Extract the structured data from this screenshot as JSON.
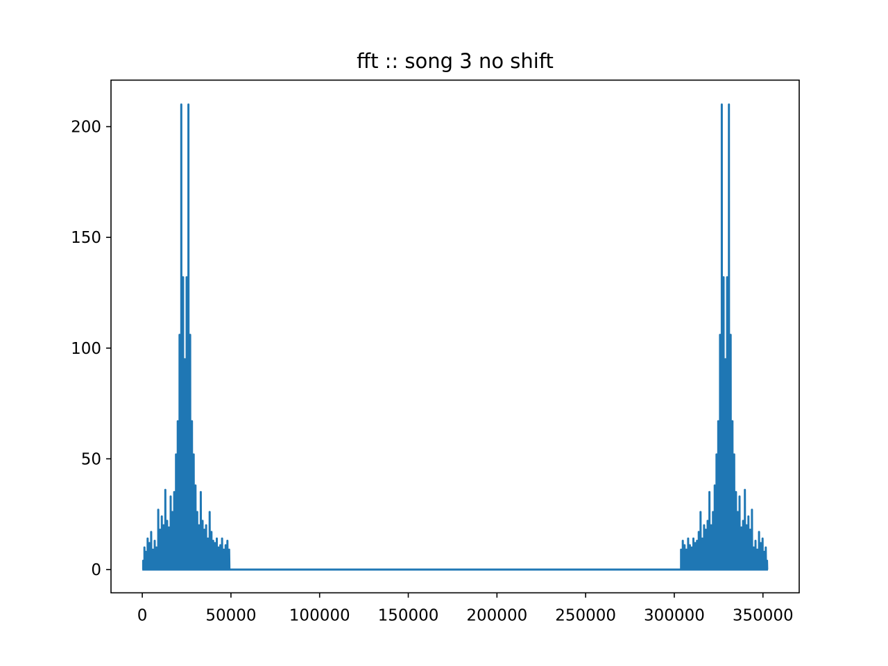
{
  "chart_data": {
    "type": "line",
    "title": "fft :: song 3 no shift",
    "xlabel": "",
    "ylabel": "",
    "xlim": [
      -17640,
      370440
    ],
    "ylim": [
      -10.5,
      221
    ],
    "grid": false,
    "x_ticks": [
      0,
      50000,
      100000,
      150000,
      200000,
      250000,
      300000,
      350000
    ],
    "x_tick_labels": [
      "0",
      "50000",
      "100000",
      "150000",
      "200000",
      "250000",
      "300000",
      "350000"
    ],
    "y_ticks": [
      0,
      50,
      100,
      150,
      200
    ],
    "y_tick_labels": [
      "0",
      "50",
      "100",
      "150",
      "200"
    ],
    "series": [
      {
        "color": "#1f77b4",
        "x_range": [
          0,
          352800
        ],
        "peaks": [
          [
            500,
            4
          ],
          [
            1200,
            10
          ],
          [
            2000,
            8
          ],
          [
            3000,
            14
          ],
          [
            4000,
            12
          ],
          [
            5000,
            17
          ],
          [
            6000,
            9
          ],
          [
            7000,
            13
          ],
          [
            8000,
            10
          ],
          [
            9000,
            27
          ],
          [
            10000,
            18
          ],
          [
            11000,
            24
          ],
          [
            12000,
            20
          ],
          [
            13000,
            36
          ],
          [
            14000,
            22
          ],
          [
            15000,
            19
          ],
          [
            16000,
            33
          ],
          [
            17000,
            26
          ],
          [
            18000,
            35
          ],
          [
            19000,
            52
          ],
          [
            20000,
            67
          ],
          [
            21000,
            106
          ],
          [
            22000,
            210
          ],
          [
            23000,
            132
          ],
          [
            24000,
            95
          ],
          [
            25000,
            132
          ],
          [
            26000,
            210
          ],
          [
            27000,
            106
          ],
          [
            28000,
            67
          ],
          [
            29000,
            52
          ],
          [
            30000,
            38
          ],
          [
            31000,
            26
          ],
          [
            32000,
            20
          ],
          [
            33000,
            35
          ],
          [
            34000,
            22
          ],
          [
            35000,
            18
          ],
          [
            36000,
            20
          ],
          [
            37000,
            14
          ],
          [
            38000,
            26
          ],
          [
            39000,
            17
          ],
          [
            40000,
            13
          ],
          [
            41000,
            12
          ],
          [
            42000,
            14
          ],
          [
            43000,
            10
          ],
          [
            44000,
            11
          ],
          [
            45000,
            14
          ],
          [
            46000,
            9
          ],
          [
            47000,
            11
          ],
          [
            48000,
            13
          ],
          [
            49000,
            9
          ],
          [
            303800,
            9
          ],
          [
            304800,
            13
          ],
          [
            305800,
            11
          ],
          [
            306800,
            9
          ],
          [
            307800,
            14
          ],
          [
            308800,
            11
          ],
          [
            309800,
            10
          ],
          [
            310800,
            14
          ],
          [
            311800,
            12
          ],
          [
            312800,
            13
          ],
          [
            313800,
            17
          ],
          [
            314800,
            26
          ],
          [
            315800,
            14
          ],
          [
            316800,
            20
          ],
          [
            317800,
            18
          ],
          [
            318800,
            22
          ],
          [
            319800,
            35
          ],
          [
            320800,
            20
          ],
          [
            321800,
            26
          ],
          [
            322800,
            38
          ],
          [
            323800,
            52
          ],
          [
            324800,
            67
          ],
          [
            325800,
            106
          ],
          [
            326800,
            210
          ],
          [
            327800,
            132
          ],
          [
            328800,
            95
          ],
          [
            329800,
            132
          ],
          [
            330800,
            210
          ],
          [
            331800,
            106
          ],
          [
            332800,
            67
          ],
          [
            333800,
            52
          ],
          [
            334800,
            35
          ],
          [
            335800,
            26
          ],
          [
            336800,
            33
          ],
          [
            337800,
            19
          ],
          [
            338800,
            22
          ],
          [
            339800,
            36
          ],
          [
            340800,
            20
          ],
          [
            341800,
            24
          ],
          [
            342800,
            18
          ],
          [
            343800,
            27
          ],
          [
            344800,
            10
          ],
          [
            345800,
            13
          ],
          [
            346800,
            9
          ],
          [
            347800,
            17
          ],
          [
            348800,
            12
          ],
          [
            349800,
            14
          ],
          [
            350800,
            8
          ],
          [
            351600,
            10
          ],
          [
            352300,
            4
          ]
        ]
      }
    ]
  }
}
